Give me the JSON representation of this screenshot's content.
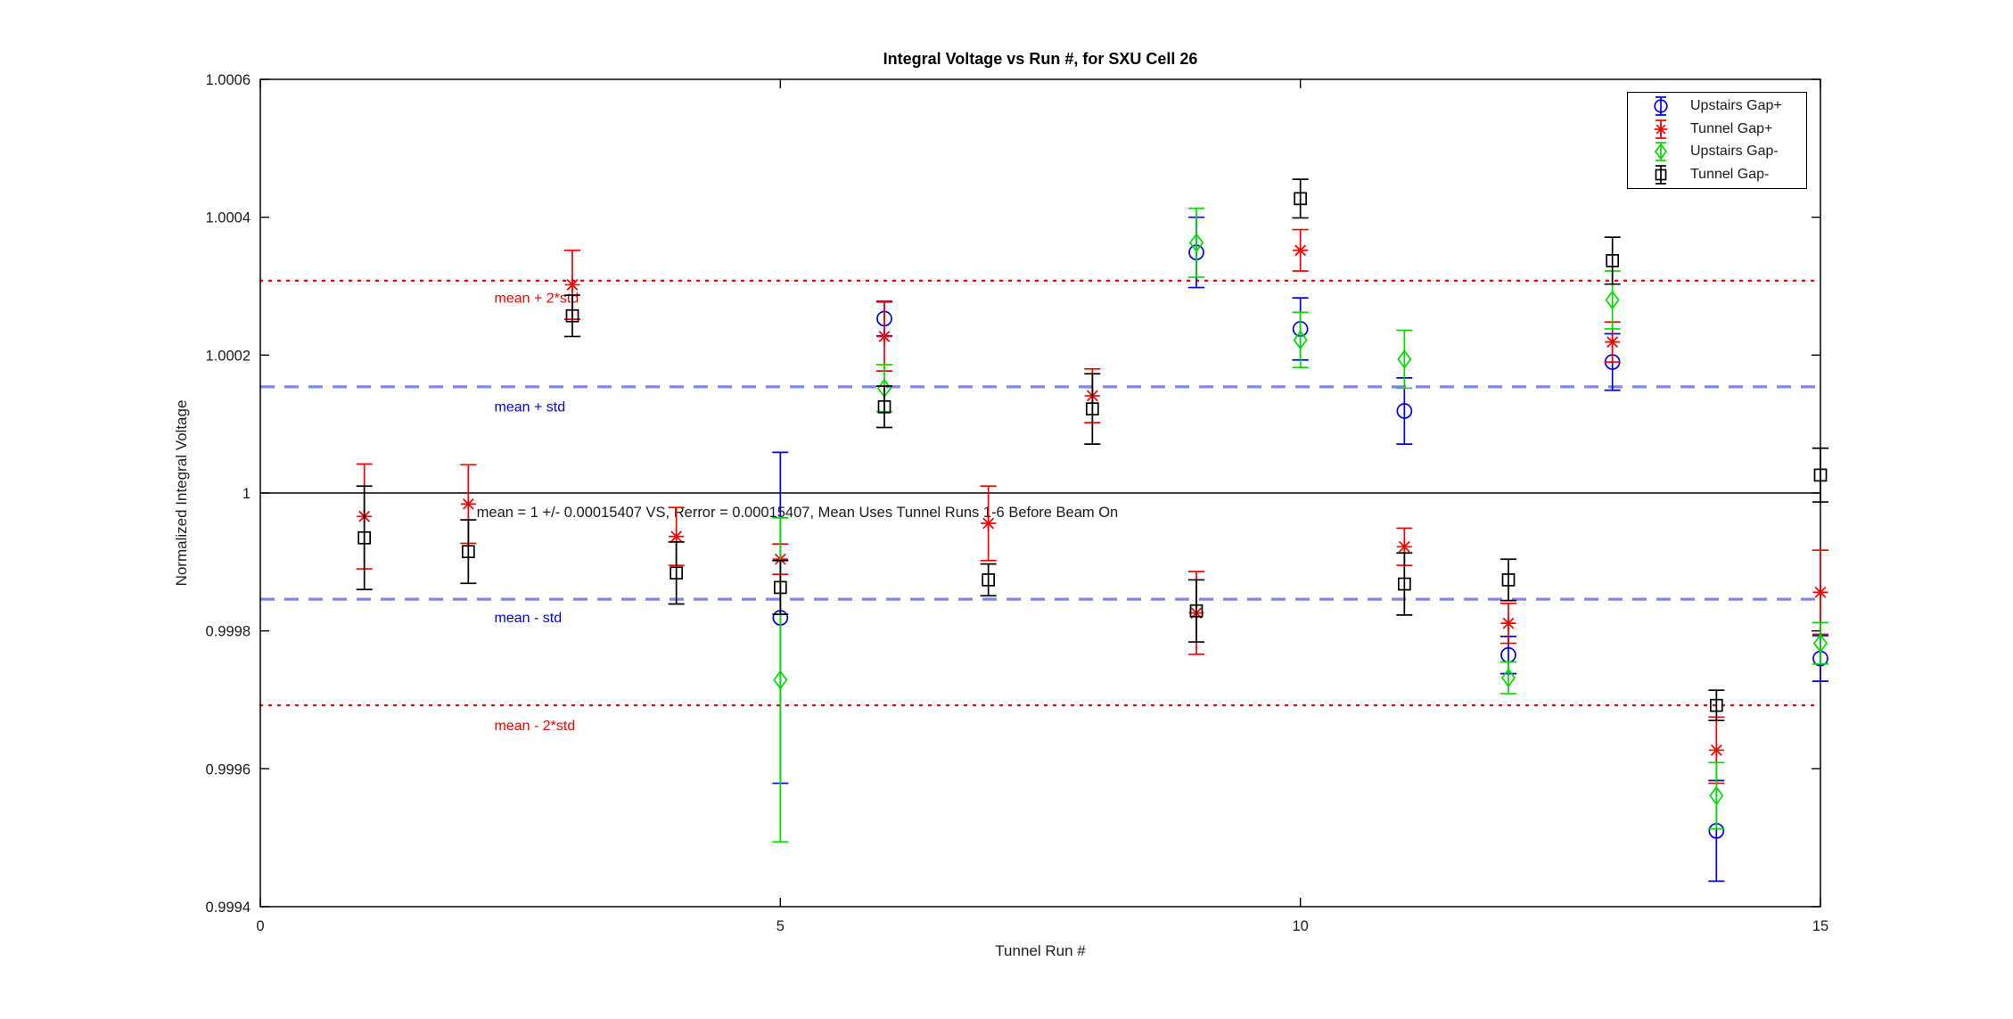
{
  "window": {
    "background": "#FFFFFF"
  },
  "chart_data": {
    "type": "scatter",
    "title": "Integral Voltage vs Run #, for SXU Cell 26",
    "xlabel": "Tunnel Run #",
    "ylabel": "Normalized Integral Voltage",
    "xlim": [
      0,
      15
    ],
    "ylim": [
      0.9994,
      1.0006
    ],
    "xticks": [
      0,
      5,
      10,
      15
    ],
    "xtick_labels": [
      "0",
      "5",
      "10",
      "15"
    ],
    "yticks": [
      0.9994,
      0.9996,
      0.9998,
      1.0,
      1.0002,
      1.0004,
      1.0006
    ],
    "ytick_labels": [
      "0.9994",
      "0.9996",
      "0.9998",
      "1",
      "1.0002",
      "1.0004",
      "1.0006"
    ],
    "grid": false,
    "legend": {
      "position": "top-right",
      "border_color": "#000000"
    },
    "series": [
      {
        "name": "Upstairs Gap+",
        "marker": "circle",
        "color": "#0000E6",
        "points": [
          [
            5,
            0.999819,
            0.00024
          ],
          [
            6,
            1.000253,
            2.5e-05
          ],
          [
            9,
            1.000349,
            5.1e-05
          ],
          [
            10,
            1.000238,
            4.5e-05
          ],
          [
            11,
            1.000119,
            4.8e-05
          ],
          [
            12,
            0.999765,
            2.7e-05
          ],
          [
            13,
            1.00019,
            4.1e-05
          ],
          [
            14,
            0.99951,
            7.3e-05
          ],
          [
            15,
            0.99976,
            3.3e-05
          ]
        ]
      },
      {
        "name": "Tunnel Gap+",
        "marker": "asterisk",
        "color": "#F40000",
        "points": [
          [
            1,
            0.999966,
            7.6e-05
          ],
          [
            2,
            0.999984,
            5.7e-05
          ],
          [
            3,
            1.000302,
            5e-05
          ],
          [
            4,
            0.999937,
            4.2e-05
          ],
          [
            5,
            0.999904,
            2.2e-05
          ],
          [
            6,
            1.000227,
            5e-05
          ],
          [
            7,
            0.999956,
            5.4e-05
          ],
          [
            8,
            1.000141,
            3.9e-05
          ],
          [
            9,
            0.999826,
            6e-05
          ],
          [
            10,
            1.000352,
            3e-05
          ],
          [
            11,
            0.999922,
            2.7e-05
          ],
          [
            12,
            0.999811,
            2.9e-05
          ],
          [
            13,
            1.000219,
            2.9e-05
          ],
          [
            14,
            0.999627,
            4.8e-05
          ],
          [
            15,
            0.999856,
            6.1e-05
          ]
        ]
      },
      {
        "name": "Upstairs Gap-",
        "marker": "diamond",
        "color": "#00DC00",
        "points": [
          [
            5,
            0.999729,
            0.000235
          ],
          [
            6,
            1.000152,
            3.4e-05
          ],
          [
            9,
            1.000363,
            5e-05
          ],
          [
            10,
            1.000222,
            4e-05
          ],
          [
            11,
            1.000194,
            4.2e-05
          ],
          [
            12,
            0.999732,
            2.3e-05
          ],
          [
            13,
            1.00028,
            4.2e-05
          ],
          [
            14,
            0.999561,
            4.8e-05
          ],
          [
            15,
            0.999782,
            3e-05
          ]
        ]
      },
      {
        "name": "Tunnel Gap-",
        "marker": "square",
        "color": "#000000",
        "points": [
          [
            1,
            0.999935,
            7.5e-05
          ],
          [
            2,
            0.999915,
            4.6e-05
          ],
          [
            3,
            1.000257,
            3e-05
          ],
          [
            4,
            0.999884,
            4.5e-05
          ],
          [
            5,
            0.999863,
            3.9e-05
          ],
          [
            6,
            1.000125,
            3e-05
          ],
          [
            7,
            0.999874,
            2.3e-05
          ],
          [
            8,
            1.000122,
            5.1e-05
          ],
          [
            9,
            0.999829,
            4.5e-05
          ],
          [
            10,
            1.000427,
            2.8e-05
          ],
          [
            11,
            0.999868,
            4.5e-05
          ],
          [
            12,
            0.999874,
            3e-05
          ],
          [
            13,
            1.000337,
            3.4e-05
          ],
          [
            14,
            0.999692,
            2.2e-05
          ],
          [
            15,
            1.000026,
            3.9e-05
          ]
        ]
      }
    ],
    "reference_lines": [
      {
        "name": "mean",
        "y": 1.0,
        "style": "solid",
        "color": "#000000",
        "label": "",
        "label_color": "#000000",
        "label_x": 0,
        "label_y": 0
      },
      {
        "name": "mean-plus-2std",
        "y": 1.000308,
        "style": "dotted",
        "color": "#F50000",
        "label": "mean + 2*std",
        "label_color": "#F50000",
        "label_x": 2.25,
        "label_y": 1.000284
      },
      {
        "name": "mean-plus-std",
        "y": 1.000154,
        "style": "dashed",
        "color": "#8585E8",
        "label": "mean + std",
        "label_color": "#0000E0",
        "label_x": 2.25,
        "label_y": 1.000126
      },
      {
        "name": "mean-minus-std",
        "y": 0.999846,
        "style": "dashed",
        "color": "#8585E8",
        "label": "mean - std",
        "label_color": "#0000E0",
        "label_x": 2.25,
        "label_y": 0.99982
      },
      {
        "name": "mean-minus-2std",
        "y": 0.999692,
        "style": "dotted",
        "color": "#F50000",
        "label": "mean - 2*std",
        "label_color": "#F50000",
        "label_x": 2.25,
        "label_y": 0.999664
      }
    ],
    "annotation": {
      "text": "mean = 1 +/- 0.00015407 VS, Rerror = 0.00015407, Mean Uses Tunnel Runs 1-6 Before Beam On",
      "x": 2.08,
      "y": 0.999973,
      "color": "#1a1a1a"
    }
  }
}
